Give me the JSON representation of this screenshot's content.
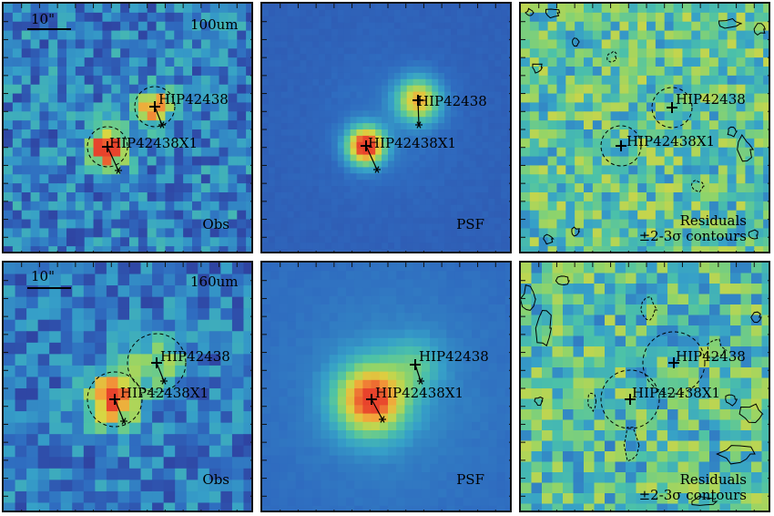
{
  "figure": {
    "rows": [
      {
        "band": "100um",
        "scale_label": "10\"",
        "panels": [
          {
            "kind": "Obs",
            "label": "Obs"
          },
          {
            "kind": "PSF",
            "label": "PSF"
          },
          {
            "kind": "Residuals",
            "label_line1": "Residuals",
            "label_line2": "±2-3σ contours"
          }
        ],
        "sources": [
          {
            "name": "HIP42438"
          },
          {
            "name": "HIP42438X1"
          }
        ]
      },
      {
        "band": "160um",
        "scale_label": "10\"",
        "panels": [
          {
            "kind": "Obs",
            "label": "Obs"
          },
          {
            "kind": "PSF",
            "label": "PSF"
          },
          {
            "kind": "Residuals",
            "label_line1": "Residuals",
            "label_line2": "±2-3σ contours"
          }
        ],
        "sources": [
          {
            "name": "HIP42438"
          },
          {
            "name": "HIP42438X1"
          }
        ]
      }
    ],
    "colors": {
      "colormap": [
        "#3b1f7a",
        "#2f3e9e",
        "#2f6cc0",
        "#36a0c8",
        "#4cc2a8",
        "#8fd46a",
        "#d8d642",
        "#f4a13a",
        "#e8432c"
      ],
      "frame": "#111111",
      "marker": "#000000"
    }
  }
}
